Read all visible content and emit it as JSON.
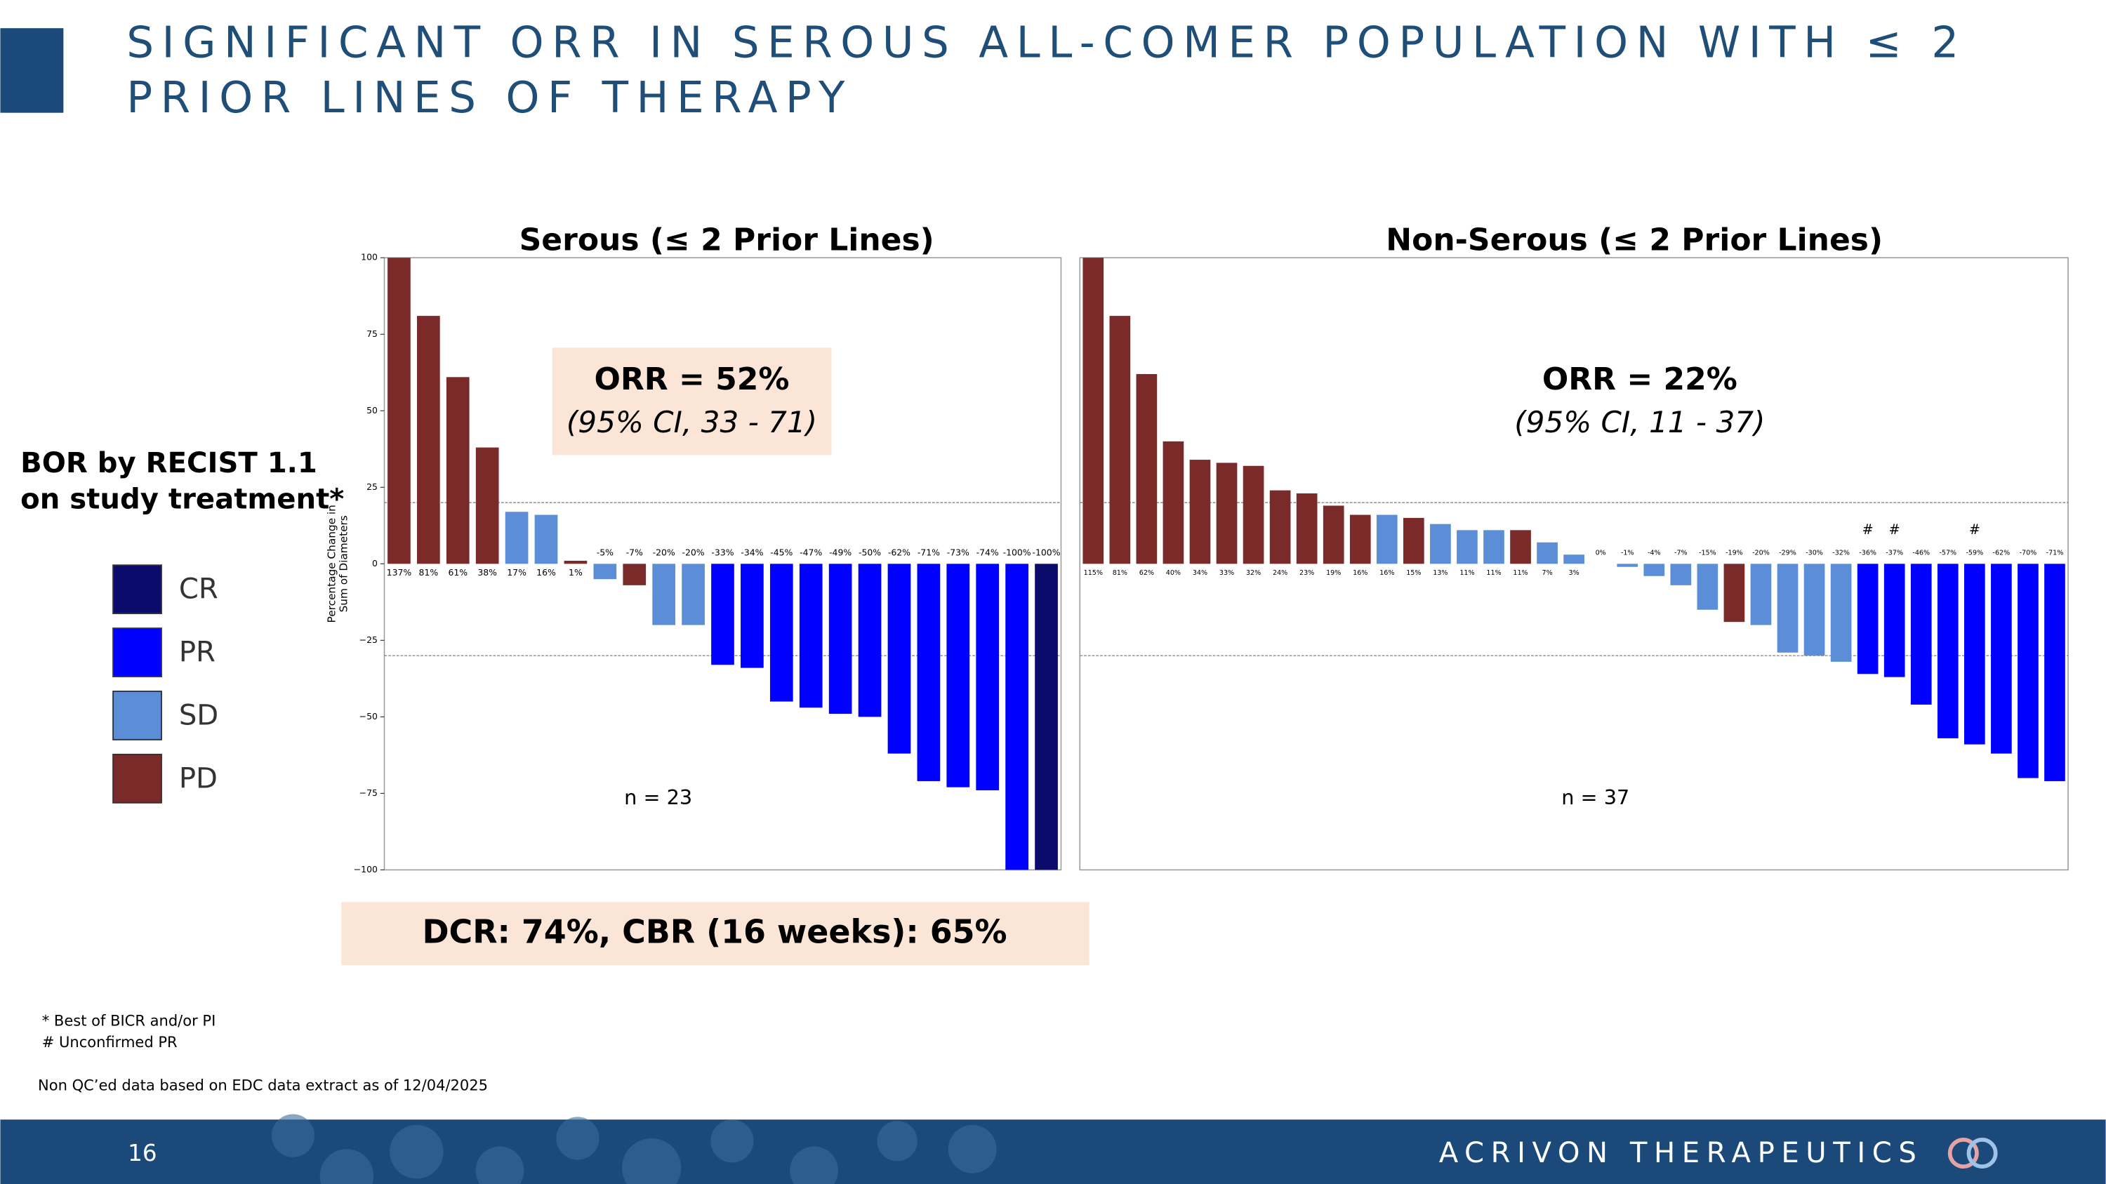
{
  "slide": {
    "title_lines": [
      "SIGNIFICANT ORR IN SEROUS ALL-COMER POPULATION WITH ≤ 2",
      "PRIOR LINES OF THERAPY"
    ],
    "bor_lines": [
      "BOR by RECIST 1.1",
      "on study treatment*"
    ],
    "legend": [
      {
        "name": "CR",
        "color": "#0b0b6b"
      },
      {
        "name": "PR",
        "color": "#0000ff"
      },
      {
        "name": "SD",
        "color": "#5b8ed6"
      },
      {
        "name": "PD",
        "color": "#7b2a2a"
      }
    ],
    "summary": "DCR: 74%, CBR (16 weeks): 65%",
    "footnotes": [
      "* Best of BICR and/or PI",
      "# Unconfirmed PR",
      "Non QC’ed data based on EDC data extract as of 12/04/2025"
    ],
    "page": "16",
    "company": "ACRIVON THERAPEUTICS"
  },
  "chart_data": [
    {
      "type": "bar",
      "title": "Serous (≤ 2 Prior Lines)",
      "y_label_lines": [
        "Percentage Change in",
        "Sum of Diameters"
      ],
      "values": [
        137,
        81,
        61,
        38,
        17,
        16,
        1,
        -5,
        -7,
        -20,
        -20,
        -33,
        -34,
        -45,
        -47,
        -49,
        -50,
        -62,
        -71,
        -73,
        -74,
        -100,
        -100
      ],
      "value_labels": [
        "137%",
        "81%",
        "61%",
        "38%",
        "17%",
        "16%",
        "1%",
        "-5%",
        "-7%",
        "-20%",
        "-20%",
        "-33%",
        "-34%",
        "-45%",
        "-47%",
        "-49%",
        "-50%",
        "-62%",
        "-71%",
        "-73%",
        "-74%",
        "-100%",
        "-100%"
      ],
      "response": [
        "PD",
        "PD",
        "PD",
        "PD",
        "SD",
        "SD",
        "PD",
        "SD",
        "PD",
        "SD",
        "SD",
        "PR",
        "PR",
        "PR",
        "PR",
        "PR",
        "PR",
        "PR",
        "PR",
        "PR",
        "PR",
        "PR",
        "CR"
      ],
      "ylim": [
        -100,
        100
      ],
      "yticks": [
        100,
        75,
        50,
        25,
        0,
        {
          "value": -25,
          "label": "−25"
        },
        {
          "value": -50,
          "label": "−50"
        },
        {
          "value": -75,
          "label": "−75"
        },
        {
          "value": -100,
          "label": "−100"
        }
      ],
      "reference_lines": [
        20,
        -30
      ],
      "orr": "ORR = 52%",
      "ci": "(95% CI, 33 - 71)",
      "n": "n = 23"
    },
    {
      "type": "bar",
      "title": "Non-Serous (≤ 2 Prior Lines)",
      "values": [
        115,
        81,
        62,
        40,
        34,
        33,
        32,
        24,
        23,
        19,
        16,
        16,
        15,
        13,
        11,
        11,
        11,
        7,
        3,
        0,
        -1,
        -4,
        -7,
        -15,
        -19,
        -20,
        -29,
        -30,
        -32,
        -36,
        -37,
        -46,
        -57,
        -59,
        -62,
        -70,
        -71
      ],
      "value_labels": [
        "115%",
        "81%",
        "62%",
        "40%",
        "34%",
        "33%",
        "32%",
        "24%",
        "23%",
        "19%",
        "16%",
        "16%",
        "15%",
        "13%",
        "11%",
        "11%",
        "11%",
        "7%",
        "3%",
        "0%",
        "-1%",
        "-4%",
        "-7%",
        "-15%",
        "-19%",
        "-20%",
        "-29%",
        "-30%",
        "-32%",
        "-36%",
        "-37%",
        "-46%",
        "-57%",
        "-59%",
        "-62%",
        "-70%",
        "-71%"
      ],
      "response": [
        "PD",
        "PD",
        "PD",
        "PD",
        "PD",
        "PD",
        "PD",
        "PD",
        "PD",
        "PD",
        "PD",
        "SD",
        "PD",
        "SD",
        "SD",
        "SD",
        "PD",
        "SD",
        "SD",
        "SD",
        "SD",
        "SD",
        "SD",
        "SD",
        "PD",
        "SD",
        "SD",
        "SD",
        "SD",
        "PR",
        "PR",
        "PR",
        "PR",
        "PR",
        "PR",
        "PR",
        "PR"
      ],
      "bar_notes": [
        null,
        null,
        null,
        null,
        null,
        null,
        null,
        null,
        null,
        null,
        null,
        null,
        null,
        null,
        null,
        null,
        null,
        null,
        null,
        null,
        null,
        null,
        null,
        null,
        null,
        null,
        null,
        null,
        null,
        "#",
        "#",
        null,
        null,
        "#",
        null,
        null,
        null
      ],
      "ylim": [
        -100,
        100
      ],
      "reference_lines": [
        20,
        -30
      ],
      "orr": "ORR = 22%",
      "ci": "(95% CI, 11 - 37)",
      "n": "n = 37"
    }
  ]
}
